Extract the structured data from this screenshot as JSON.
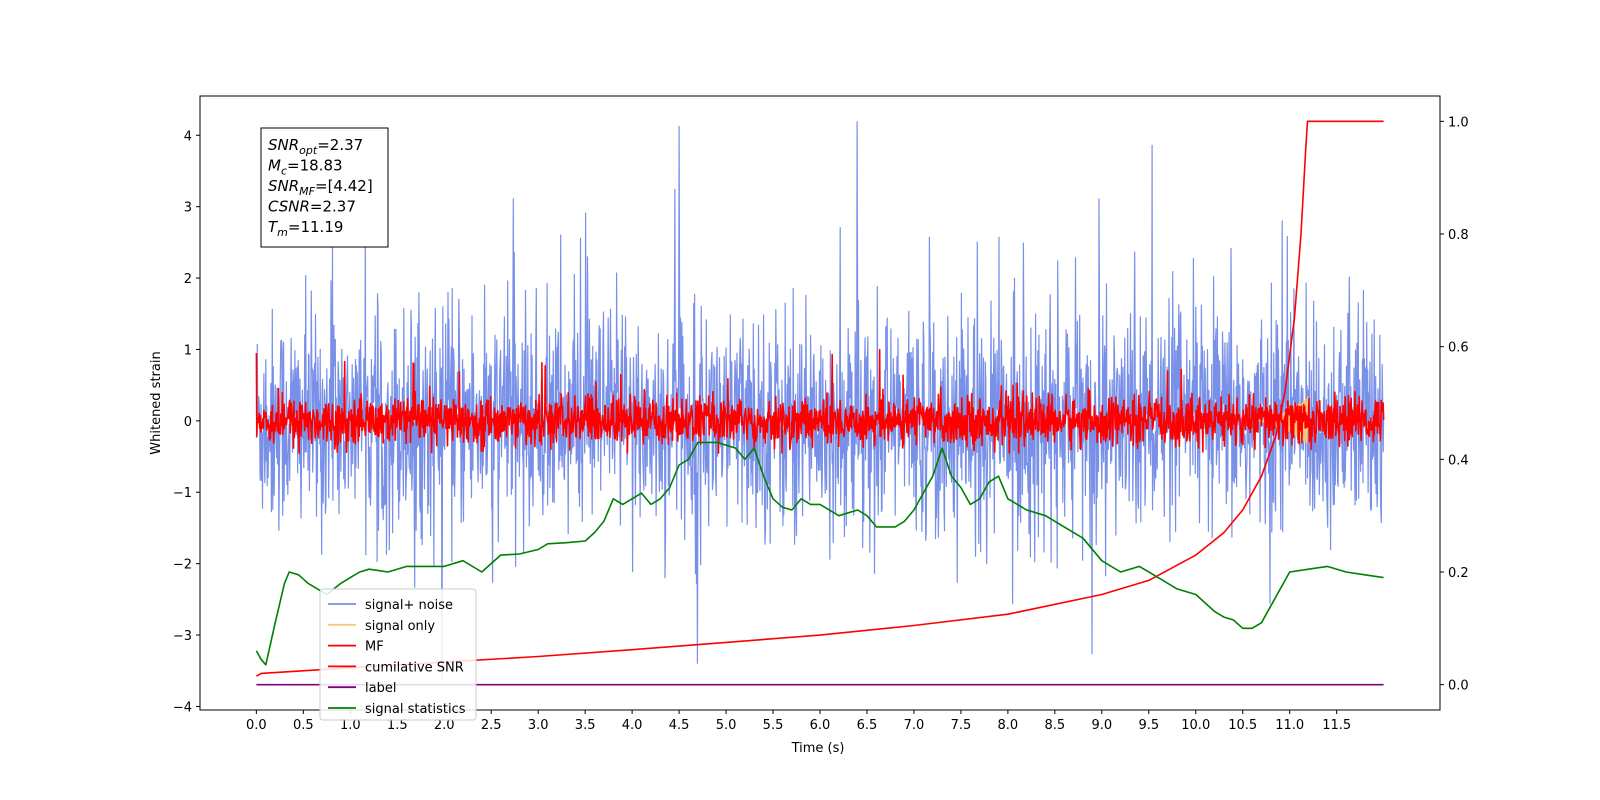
{
  "chart_data": {
    "type": "line",
    "title": "",
    "xlabel": "Time (s)",
    "ylabel": "Whitened strain",
    "xlim": [
      -0.6,
      12.6
    ],
    "ylim": [
      -4.05,
      4.55
    ],
    "y2lim": [
      -0.045,
      1.045
    ],
    "x_ticks": [
      0.0,
      0.5,
      1.0,
      1.5,
      2.0,
      2.5,
      3.0,
      3.5,
      4.0,
      4.5,
      5.0,
      5.5,
      6.0,
      6.5,
      7.0,
      7.5,
      8.0,
      8.5,
      9.0,
      9.5,
      10.0,
      10.5,
      11.0,
      11.5
    ],
    "x_tick_labels": [
      "0.0",
      "0.5",
      "1.0",
      "1.5",
      "2.0",
      "2.5",
      "3.0",
      "3.5",
      "4.0",
      "4.5",
      "5.0",
      "5.5",
      "6.0",
      "6.5",
      "7.0",
      "7.5",
      "8.0",
      "8.5",
      "9.0",
      "9.5",
      "10.0",
      "10.5",
      "11.0",
      "11.5"
    ],
    "y_ticks": [
      -4,
      -3,
      -2,
      -1,
      0,
      1,
      2,
      3,
      4
    ],
    "y_tick_labels": [
      "−4",
      "−3",
      "−2",
      "−1",
      "0",
      "1",
      "2",
      "3",
      "4"
    ],
    "y2_ticks": [
      0.0,
      0.2,
      0.4,
      0.6,
      0.8,
      1.0
    ],
    "y2_tick_labels": [
      "0.0",
      "0.2",
      "0.4",
      "0.6",
      "0.8",
      "1.0"
    ],
    "grid": false,
    "legend_placement": "lower-left",
    "annotation": {
      "lines": [
        {
          "base": "SNR",
          "sub": "opt",
          "value": "=2.37"
        },
        {
          "base": "M",
          "sub": "c",
          "value": "=18.83"
        },
        {
          "base": "SNR",
          "sub": "MF",
          "value": "=[4.42]"
        },
        {
          "base": "CSNR",
          "sub": "",
          "value": "=2.37"
        },
        {
          "base": "T",
          "sub": "m",
          "value": "=11.19"
        }
      ]
    },
    "series": [
      {
        "name": "signal+ noise",
        "axis": "left",
        "color": "#7890e8",
        "kind": "noise",
        "x_range": [
          0.0,
          12.0
        ],
        "center": 0.0,
        "typical_band": [
          -1.4,
          1.4
        ],
        "peak_band": [
          -3.6,
          4.2
        ]
      },
      {
        "name": "signal only",
        "axis": "left",
        "color": "#f5c97b",
        "kind": "chirp",
        "x_range": [
          10.6,
          11.2
        ],
        "max_amplitude": 0.35
      },
      {
        "name": "MF",
        "axis": "left",
        "color": "#ff0000",
        "kind": "noise",
        "x_range": [
          0.0,
          12.0
        ],
        "center": 0.0,
        "typical_band": [
          -0.3,
          0.3
        ],
        "peak_band": [
          -0.45,
          1.0
        ]
      },
      {
        "name": "cumilative SNR",
        "axis": "right",
        "color": "#ff0000",
        "x": [
          0.0,
          0.05,
          1.0,
          2.0,
          3.0,
          4.0,
          5.0,
          6.0,
          7.0,
          8.0,
          9.0,
          9.5,
          10.0,
          10.3,
          10.5,
          10.7,
          10.85,
          10.95,
          11.05,
          11.12,
          11.17,
          11.19,
          11.22,
          11.5,
          11.8,
          12.0
        ],
        "values": [
          0.015,
          0.02,
          0.03,
          0.04,
          0.05,
          0.062,
          0.075,
          0.088,
          0.105,
          0.125,
          0.16,
          0.185,
          0.23,
          0.27,
          0.31,
          0.37,
          0.44,
          0.52,
          0.65,
          0.8,
          0.95,
          1.0,
          1.0,
          1.0,
          1.0,
          1.0
        ]
      },
      {
        "name": "label",
        "axis": "right",
        "color": "#800080",
        "x": [
          0.0,
          12.0
        ],
        "values": [
          0.0,
          0.0
        ]
      },
      {
        "name": "signal statistics",
        "axis": "right",
        "color": "#008000",
        "x": [
          0.0,
          0.05,
          0.1,
          0.2,
          0.3,
          0.35,
          0.45,
          0.55,
          0.65,
          0.75,
          0.9,
          1.0,
          1.1,
          1.2,
          1.4,
          1.6,
          1.8,
          2.0,
          2.2,
          2.4,
          2.6,
          2.8,
          3.0,
          3.1,
          3.3,
          3.5,
          3.6,
          3.7,
          3.8,
          3.9,
          4.0,
          4.1,
          4.2,
          4.3,
          4.4,
          4.5,
          4.6,
          4.7,
          4.8,
          4.9,
          5.0,
          5.1,
          5.2,
          5.3,
          5.4,
          5.5,
          5.6,
          5.7,
          5.8,
          5.9,
          6.0,
          6.2,
          6.4,
          6.5,
          6.6,
          6.8,
          6.9,
          7.0,
          7.1,
          7.2,
          7.3,
          7.4,
          7.5,
          7.6,
          7.7,
          7.8,
          7.9,
          8.0,
          8.2,
          8.4,
          8.6,
          8.8,
          9.0,
          9.2,
          9.4,
          9.6,
          9.8,
          10.0,
          10.2,
          10.3,
          10.4,
          10.5,
          10.6,
          10.7,
          10.8,
          10.9,
          11.0,
          11.2,
          11.4,
          11.6,
          11.8,
          12.0
        ],
        "values": [
          0.06,
          0.045,
          0.035,
          0.11,
          0.18,
          0.2,
          0.195,
          0.18,
          0.17,
          0.16,
          0.18,
          0.19,
          0.2,
          0.205,
          0.2,
          0.21,
          0.21,
          0.21,
          0.22,
          0.2,
          0.23,
          0.232,
          0.24,
          0.25,
          0.252,
          0.255,
          0.27,
          0.29,
          0.33,
          0.32,
          0.33,
          0.34,
          0.32,
          0.33,
          0.35,
          0.39,
          0.4,
          0.43,
          0.43,
          0.43,
          0.425,
          0.42,
          0.4,
          0.42,
          0.37,
          0.33,
          0.315,
          0.31,
          0.33,
          0.32,
          0.32,
          0.3,
          0.31,
          0.3,
          0.28,
          0.28,
          0.29,
          0.31,
          0.34,
          0.37,
          0.42,
          0.37,
          0.35,
          0.32,
          0.33,
          0.36,
          0.37,
          0.33,
          0.31,
          0.3,
          0.28,
          0.26,
          0.22,
          0.2,
          0.21,
          0.19,
          0.17,
          0.16,
          0.13,
          0.12,
          0.115,
          0.1,
          0.1,
          0.11,
          0.14,
          0.17,
          0.2,
          0.205,
          0.21,
          0.2,
          0.195,
          0.19
        ]
      }
    ]
  }
}
